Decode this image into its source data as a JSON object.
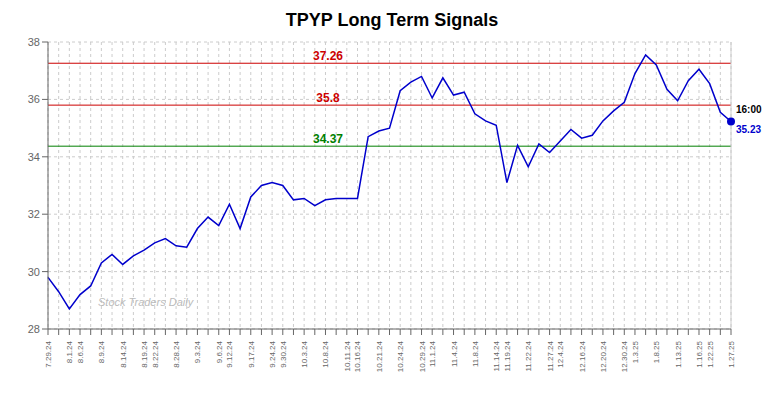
{
  "chart_data": {
    "type": "line",
    "title": "TPYP Long Term Signals",
    "categories": [
      "7.29.24",
      null,
      "8.1.24",
      "8.6.24",
      null,
      "8.9.24",
      null,
      "8.14.24",
      null,
      "8.19.24",
      "8.22.24",
      null,
      "8.28.24",
      null,
      "9.3.24",
      null,
      "9.6.24",
      "9.12.24",
      null,
      "9.17.24",
      null,
      "9.24.24",
      "9.30.24",
      null,
      "10.3.24",
      null,
      "10.8.24",
      null,
      "10.11.24",
      "10.16.24",
      null,
      "10.21.24",
      null,
      "10.24.24",
      null,
      "10.29.24",
      "11.1.24",
      null,
      "11.4.24",
      null,
      "11.8.24",
      null,
      "11.14.24",
      "11.19.24",
      null,
      "11.22.24",
      null,
      "11.27.24",
      "12.4.24",
      null,
      "12.16.24",
      null,
      "12.20.24",
      null,
      "12.30.24",
      "1.3.25",
      null,
      "1.8.25",
      null,
      "1.13.25",
      null,
      "1.16.25",
      "1.22.25",
      null,
      "1.27.25"
    ],
    "values": [
      29.8,
      29.3,
      28.7,
      29.2,
      29.5,
      30.3,
      30.6,
      30.25,
      30.55,
      30.75,
      31.0,
      31.15,
      30.9,
      30.85,
      31.5,
      31.9,
      31.6,
      32.35,
      31.5,
      32.6,
      33.0,
      33.1,
      33.0,
      32.5,
      32.55,
      32.3,
      32.5,
      32.55,
      32.55,
      32.55,
      34.7,
      34.9,
      35.0,
      36.3,
      36.6,
      36.8,
      36.05,
      36.75,
      36.15,
      36.25,
      35.5,
      35.25,
      35.1,
      33.1,
      34.4,
      33.65,
      34.45,
      34.15,
      34.55,
      34.95,
      34.65,
      34.75,
      35.25,
      35.6,
      35.9,
      36.9,
      37.55,
      37.2,
      36.35,
      35.95,
      36.65,
      37.05,
      36.55,
      35.55,
      35.23
    ],
    "color": "#0000cc",
    "ylim": [
      28,
      38
    ],
    "yticks": [
      28,
      30,
      32,
      34,
      36,
      38
    ],
    "grid": true,
    "hlines": [
      {
        "y": 37.26,
        "label": "37.26",
        "color": "#cc0000"
      },
      {
        "y": 35.8,
        "label": "35.8",
        "color": "#cc0000"
      },
      {
        "y": 34.37,
        "label": "34.37",
        "color": "#008000"
      }
    ],
    "end_labels": [
      {
        "text": "16:00"
      },
      {
        "text": "35.23",
        "color": "#0000cc"
      }
    ],
    "watermark": {
      "text": "Stock Traders Daily",
      "color": "#bbbbbb"
    }
  }
}
